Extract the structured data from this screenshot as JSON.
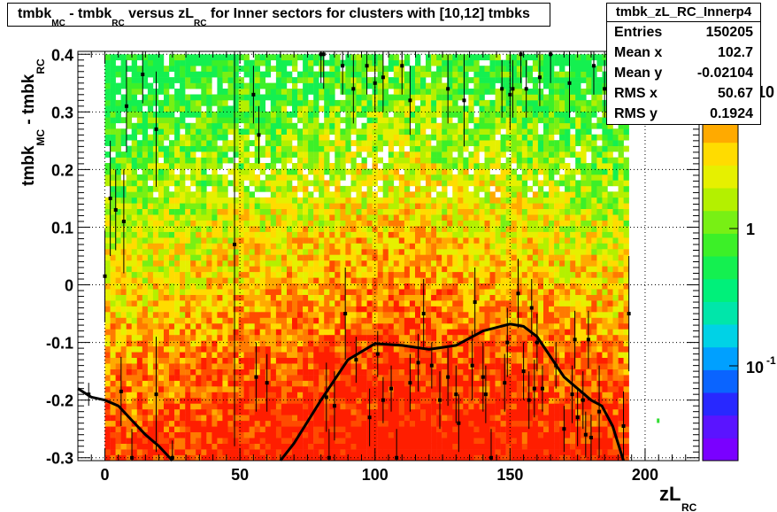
{
  "chart_data": {
    "type": "heatmap",
    "title_parts": {
      "a": "tmbk",
      "a_sub": "MC",
      "b": " - tmbk",
      "b_sub": "RC",
      "c": " versus zL",
      "c_sub": "RC",
      "d": " for Inner sectors for clusters with [10,12] tmbks"
    },
    "xlabel": "zL",
    "xlabel_sub": "RC",
    "ylabel_parts": {
      "a": "tmbk",
      "a_sub": "MC",
      "b": " - tmbk",
      "b_sub": "RC"
    },
    "xlim": [
      -10,
      220
    ],
    "ylim": [
      -0.305,
      0.405
    ],
    "x_ticks": [
      0,
      50,
      100,
      150,
      200
    ],
    "x_tick_labels": [
      "0",
      "50",
      "100",
      "150",
      "200"
    ],
    "y_ticks": [
      -0.3,
      -0.2,
      -0.1,
      0,
      0.1,
      0.2,
      0.3,
      0.4
    ],
    "y_tick_labels": [
      "-0.3",
      "-0.2",
      "-0.1",
      "0",
      "0.1",
      "0.2",
      "0.3",
      "0.4"
    ],
    "grid": true,
    "colorbar": {
      "scale": "log",
      "labels": [
        "1",
        "10",
        "10"
      ],
      "label_sup": [
        "",
        "",
        "-1"
      ],
      "colors": [
        "#7a00ff",
        "#5a14ff",
        "#2828ff",
        "#0a64ff",
        "#00a0ff",
        "#00d2e6",
        "#00e6aa",
        "#00f07a",
        "#14f050",
        "#3cf028",
        "#78f014",
        "#b4f000",
        "#e6f000",
        "#ffdc00",
        "#ffaa00",
        "#ff7a00",
        "#ff4b00",
        "#ff1e00"
      ]
    },
    "profile_points": [
      {
        "x": -6,
        "y": -0.19,
        "e": 0.02
      },
      {
        "x": 0,
        "y": 0.015,
        "e": 0.08
      },
      {
        "x": 2,
        "y": 0.15,
        "e": 0.1
      },
      {
        "x": 4,
        "y": 0.13,
        "e": 0.07
      },
      {
        "x": 6,
        "y": -0.185,
        "e": 0.06
      },
      {
        "x": 7,
        "y": 0.11,
        "e": 0.09
      },
      {
        "x": 8,
        "y": 0.31,
        "e": 0.08
      },
      {
        "x": 10,
        "y": -0.3,
        "e": 0.05
      },
      {
        "x": 14,
        "y": 0.365,
        "e": 0.05
      },
      {
        "x": 19,
        "y": -0.19,
        "e": 0.1
      },
      {
        "x": 19,
        "y": 0.27,
        "e": 0.1
      },
      {
        "x": 25,
        "y": -0.3,
        "e": 0.03
      },
      {
        "x": 48,
        "y": 0.07,
        "e": 0.35
      },
      {
        "x": 55,
        "y": 0.33,
        "e": 0.05
      },
      {
        "x": 56,
        "y": -0.16,
        "e": 0.06
      },
      {
        "x": 57,
        "y": 0.26,
        "e": 0.05
      },
      {
        "x": 60,
        "y": -0.17,
        "e": 0.05
      },
      {
        "x": 80,
        "y": 0.4,
        "e": 0.05
      },
      {
        "x": 81,
        "y": 0.4,
        "e": 0.06
      },
      {
        "x": 82,
        "y": -0.195,
        "e": 0.06
      },
      {
        "x": 83,
        "y": -0.3,
        "e": 0.05
      },
      {
        "x": 85,
        "y": -0.21,
        "e": 0.06
      },
      {
        "x": 88,
        "y": 0.38,
        "e": 0.05
      },
      {
        "x": 89,
        "y": -0.05,
        "e": 0.08
      },
      {
        "x": 92,
        "y": 0.34,
        "e": 0.06
      },
      {
        "x": 93,
        "y": -0.13,
        "e": 0.04
      },
      {
        "x": 97,
        "y": 0.38,
        "e": 0.05
      },
      {
        "x": 98,
        "y": -0.23,
        "e": 0.05
      },
      {
        "x": 100,
        "y": 0.35,
        "e": 0.05
      },
      {
        "x": 101,
        "y": -0.12,
        "e": 0.04
      },
      {
        "x": 103,
        "y": -0.2,
        "e": 0.04
      },
      {
        "x": 103,
        "y": 0.36,
        "e": 0.06
      },
      {
        "x": 106,
        "y": -0.18,
        "e": 0.04
      },
      {
        "x": 108,
        "y": -0.3,
        "e": 0.05
      },
      {
        "x": 110,
        "y": 0.38,
        "e": 0.05
      },
      {
        "x": 113,
        "y": 0.32,
        "e": 0.06
      },
      {
        "x": 113,
        "y": -0.17,
        "e": 0.05
      },
      {
        "x": 116,
        "y": -0.135,
        "e": 0.05
      },
      {
        "x": 118,
        "y": -0.05,
        "e": 0.06
      },
      {
        "x": 121,
        "y": -0.14,
        "e": 0.04
      },
      {
        "x": 124,
        "y": -0.2,
        "e": 0.05
      },
      {
        "x": 127,
        "y": -0.16,
        "e": 0.05
      },
      {
        "x": 127,
        "y": 0.34,
        "e": 0.06
      },
      {
        "x": 130,
        "y": -0.19,
        "e": 0.05
      },
      {
        "x": 131,
        "y": -0.24,
        "e": 0.05
      },
      {
        "x": 133,
        "y": 0.32,
        "e": 0.08
      },
      {
        "x": 136,
        "y": -0.14,
        "e": 0.06
      },
      {
        "x": 137,
        "y": -0.03,
        "e": 0.06
      },
      {
        "x": 140,
        "y": -0.16,
        "e": 0.06
      },
      {
        "x": 141,
        "y": -0.19,
        "e": 0.05
      },
      {
        "x": 143,
        "y": -0.3,
        "e": 0.05
      },
      {
        "x": 147,
        "y": 0.34,
        "e": 0.05
      },
      {
        "x": 148,
        "y": -0.17,
        "e": 0.05
      },
      {
        "x": 149,
        "y": -0.1,
        "e": 0.06
      },
      {
        "x": 150,
        "y": 0.33,
        "e": 0.06
      },
      {
        "x": 151,
        "y": 0.34,
        "e": 0.05
      },
      {
        "x": 153,
        "y": -0.015,
        "e": 0.06
      },
      {
        "x": 154,
        "y": 0.4,
        "e": 0.05
      },
      {
        "x": 155,
        "y": -0.15,
        "e": 0.05
      },
      {
        "x": 156,
        "y": 0.34,
        "e": 0.05
      },
      {
        "x": 157,
        "y": -0.2,
        "e": 0.05
      },
      {
        "x": 158,
        "y": -0.04,
        "e": 0.05
      },
      {
        "x": 159,
        "y": -0.18,
        "e": 0.05
      },
      {
        "x": 160,
        "y": -0.1,
        "e": 0.05
      },
      {
        "x": 161,
        "y": 0.36,
        "e": 0.05
      },
      {
        "x": 162,
        "y": -0.18,
        "e": 0.04
      },
      {
        "x": 165,
        "y": 0.4,
        "e": 0.05
      },
      {
        "x": 167,
        "y": -0.14,
        "e": 0.04
      },
      {
        "x": 170,
        "y": -0.25,
        "e": 0.04
      },
      {
        "x": 172,
        "y": 0.35,
        "e": 0.06
      },
      {
        "x": 173,
        "y": -0.19,
        "e": 0.05
      },
      {
        "x": 174,
        "y": -0.095,
        "e": 0.05
      },
      {
        "x": 175,
        "y": -0.23,
        "e": 0.05
      },
      {
        "x": 177,
        "y": -0.2,
        "e": 0.05
      },
      {
        "x": 178,
        "y": -0.26,
        "e": 0.04
      },
      {
        "x": 179,
        "y": -0.095,
        "e": 0.05
      },
      {
        "x": 180,
        "y": -0.265,
        "e": 0.04
      },
      {
        "x": 181,
        "y": 0.38,
        "e": 0.05
      },
      {
        "x": 183,
        "y": -0.22,
        "e": 0.08
      },
      {
        "x": 185,
        "y": 0.34,
        "e": 0.05
      },
      {
        "x": 188,
        "y": 0.395,
        "e": 0.05
      },
      {
        "x": 192,
        "y": -0.245,
        "e": 0.06
      },
      {
        "x": 194,
        "y": -0.05,
        "e": 0.1
      }
    ],
    "fit_curve": [
      {
        "x": -10,
        "y": -0.18
      },
      {
        "x": -5,
        "y": -0.195
      },
      {
        "x": 0,
        "y": -0.2
      },
      {
        "x": 5,
        "y": -0.21
      },
      {
        "x": 10,
        "y": -0.235
      },
      {
        "x": 15,
        "y": -0.26
      },
      {
        "x": 20,
        "y": -0.28
      },
      {
        "x": 25,
        "y": -0.305
      },
      {
        "x": 65,
        "y": -0.305
      },
      {
        "x": 70,
        "y": -0.275
      },
      {
        "x": 80,
        "y": -0.2
      },
      {
        "x": 90,
        "y": -0.13
      },
      {
        "x": 100,
        "y": -0.102
      },
      {
        "x": 110,
        "y": -0.105
      },
      {
        "x": 120,
        "y": -0.112
      },
      {
        "x": 130,
        "y": -0.105
      },
      {
        "x": 140,
        "y": -0.08
      },
      {
        "x": 150,
        "y": -0.068
      },
      {
        "x": 155,
        "y": -0.072
      },
      {
        "x": 160,
        "y": -0.09
      },
      {
        "x": 170,
        "y": -0.16
      },
      {
        "x": 180,
        "y": -0.2
      },
      {
        "x": 184,
        "y": -0.21
      },
      {
        "x": 188,
        "y": -0.245
      },
      {
        "x": 192,
        "y": -0.305
      }
    ],
    "extra_marks": [
      {
        "x": 205,
        "y": -0.235,
        "color": "#33dd33"
      }
    ]
  },
  "stats": {
    "name": "tmbk_zL_RC_Innerp4",
    "rows": [
      {
        "label": "Entries",
        "value": "150205"
      },
      {
        "label": "Mean x",
        "value": "102.7"
      },
      {
        "label": "Mean y",
        "value": "-0.02104"
      },
      {
        "label": "RMS x",
        "value": "50.67"
      },
      {
        "label": "RMS y",
        "value": "0.1924"
      }
    ]
  }
}
